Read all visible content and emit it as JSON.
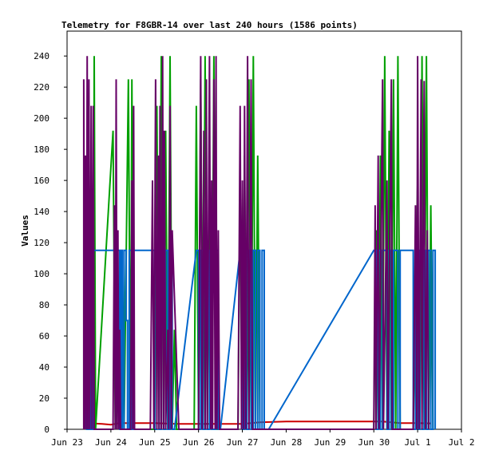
{
  "chart_data": {
    "type": "line",
    "title": "Telemetry for F8GBR-14 over last 240 hours (1586 points)",
    "ylabel": "Values",
    "xlabel": "",
    "x_tick_labels": [
      "Jun 23",
      "Jun 24",
      "Jun 25",
      "Jun 26",
      "Jun 27",
      "Jun 28",
      "Jun 29",
      "Jun 30",
      "Jul 1",
      "Jul 2"
    ],
    "x_tick_values": [
      0,
      1,
      2,
      3,
      4,
      5,
      6,
      7,
      8,
      9
    ],
    "xlim": [
      0,
      9
    ],
    "y_ticks": [
      0,
      20,
      40,
      60,
      80,
      100,
      120,
      140,
      160,
      180,
      200,
      220,
      240
    ],
    "ylim": [
      0,
      256
    ],
    "grid": false,
    "legend": "none",
    "series": [
      {
        "color": "#cc0000",
        "points": [
          [
            0.45,
            4
          ],
          [
            0.8,
            3.5
          ],
          [
            1.0,
            3
          ],
          [
            1.2,
            4
          ],
          [
            1.6,
            4
          ],
          [
            2.0,
            4
          ],
          [
            2.5,
            3.5
          ],
          [
            3.0,
            3.5
          ],
          [
            3.5,
            3.5
          ],
          [
            4.0,
            3.5
          ],
          [
            4.4,
            4.5
          ],
          [
            5.0,
            5
          ],
          [
            6.0,
            5
          ],
          [
            7.0,
            5
          ],
          [
            7.2,
            5
          ],
          [
            7.6,
            4
          ],
          [
            8.0,
            4
          ],
          [
            8.3,
            3.8
          ]
        ]
      },
      {
        "color": "#00a000",
        "points": [
          [
            0.4,
            0
          ],
          [
            0.45,
            168
          ],
          [
            0.5,
            24
          ],
          [
            0.52,
            0
          ],
          [
            0.55,
            112
          ],
          [
            0.6,
            0
          ],
          [
            0.62,
            240
          ],
          [
            0.65,
            0
          ],
          [
            1.05,
            192
          ],
          [
            1.1,
            0
          ],
          [
            1.15,
            40
          ],
          [
            1.2,
            0
          ],
          [
            1.25,
            115
          ],
          [
            1.3,
            0
          ],
          [
            1.4,
            225
          ],
          [
            1.45,
            0
          ],
          [
            1.48,
            225
          ],
          [
            1.52,
            0
          ],
          [
            2.0,
            0
          ],
          [
            2.05,
            208
          ],
          [
            2.1,
            0
          ],
          [
            2.15,
            240
          ],
          [
            2.2,
            0
          ],
          [
            2.25,
            192
          ],
          [
            2.3,
            0
          ],
          [
            2.35,
            240
          ],
          [
            2.4,
            0
          ],
          [
            2.45,
            64
          ],
          [
            2.5,
            0
          ],
          [
            2.9,
            0
          ],
          [
            2.95,
            208
          ],
          [
            3.0,
            0
          ],
          [
            3.05,
            225
          ],
          [
            3.1,
            0
          ],
          [
            3.15,
            240
          ],
          [
            3.2,
            0
          ],
          [
            3.25,
            160
          ],
          [
            3.3,
            0
          ],
          [
            3.35,
            240
          ],
          [
            3.4,
            0
          ],
          [
            3.45,
            0
          ],
          [
            3.9,
            0
          ],
          [
            3.95,
            160
          ],
          [
            4.0,
            0
          ],
          [
            4.05,
            176
          ],
          [
            4.1,
            0
          ],
          [
            4.15,
            225
          ],
          [
            4.2,
            0
          ],
          [
            4.25,
            240
          ],
          [
            4.3,
            0
          ],
          [
            4.35,
            176
          ],
          [
            4.4,
            0
          ],
          [
            7.0,
            0
          ],
          [
            7.05,
            128
          ],
          [
            7.1,
            0
          ],
          [
            7.15,
            176
          ],
          [
            7.2,
            0
          ],
          [
            7.25,
            240
          ],
          [
            7.3,
            0
          ],
          [
            7.35,
            192
          ],
          [
            7.4,
            0
          ],
          [
            7.45,
            225
          ],
          [
            7.5,
            0
          ],
          [
            7.55,
            240
          ],
          [
            7.6,
            0
          ],
          [
            7.9,
            0
          ],
          [
            8.0,
            160
          ],
          [
            8.05,
            0
          ],
          [
            8.1,
            240
          ],
          [
            8.15,
            0
          ],
          [
            8.2,
            240
          ],
          [
            8.25,
            0
          ],
          [
            8.3,
            144
          ],
          [
            8.35,
            0
          ]
        ]
      },
      {
        "color": "#0066cc",
        "points": [
          [
            0.42,
            0
          ],
          [
            0.42,
            115
          ],
          [
            0.45,
            115
          ],
          [
            0.45,
            0
          ],
          [
            0.48,
            0
          ],
          [
            0.48,
            115
          ],
          [
            0.5,
            115
          ],
          [
            0.5,
            0
          ],
          [
            0.53,
            0
          ],
          [
            0.53,
            115
          ],
          [
            0.56,
            115
          ],
          [
            0.56,
            0
          ],
          [
            0.6,
            0
          ],
          [
            0.6,
            115
          ],
          [
            1.2,
            115
          ],
          [
            1.2,
            0
          ],
          [
            1.23,
            0
          ],
          [
            1.23,
            115
          ],
          [
            1.26,
            115
          ],
          [
            1.26,
            0
          ],
          [
            1.3,
            0
          ],
          [
            1.3,
            115
          ],
          [
            1.35,
            115
          ],
          [
            1.35,
            70
          ],
          [
            1.38,
            70
          ],
          [
            1.38,
            0
          ],
          [
            1.42,
            0
          ],
          [
            1.42,
            115
          ],
          [
            1.48,
            115
          ],
          [
            1.48,
            0
          ],
          [
            1.52,
            0
          ],
          [
            1.52,
            115
          ],
          [
            2.0,
            115
          ],
          [
            2.0,
            0
          ],
          [
            2.05,
            0
          ],
          [
            2.05,
            115
          ],
          [
            2.1,
            115
          ],
          [
            2.1,
            0
          ],
          [
            2.15,
            0
          ],
          [
            2.15,
            115
          ],
          [
            2.2,
            115
          ],
          [
            2.2,
            0
          ],
          [
            2.25,
            0
          ],
          [
            2.25,
            115
          ],
          [
            2.3,
            115
          ],
          [
            2.3,
            0
          ],
          [
            2.35,
            0
          ],
          [
            2.35,
            115
          ],
          [
            2.4,
            115
          ],
          [
            2.4,
            0
          ],
          [
            2.45,
            0
          ],
          [
            2.95,
            115
          ],
          [
            3.0,
            115
          ],
          [
            3.0,
            0
          ],
          [
            3.05,
            0
          ],
          [
            3.05,
            115
          ],
          [
            3.1,
            115
          ],
          [
            3.1,
            0
          ],
          [
            3.15,
            0
          ],
          [
            3.15,
            115
          ],
          [
            3.2,
            115
          ],
          [
            3.2,
            0
          ],
          [
            3.25,
            0
          ],
          [
            3.25,
            115
          ],
          [
            3.3,
            115
          ],
          [
            3.3,
            0
          ],
          [
            3.4,
            0
          ],
          [
            3.4,
            115
          ],
          [
            3.45,
            115
          ],
          [
            3.45,
            0
          ],
          [
            3.5,
            0
          ],
          [
            3.95,
            115
          ],
          [
            4.0,
            115
          ],
          [
            4.0,
            0
          ],
          [
            4.05,
            0
          ],
          [
            4.05,
            115
          ],
          [
            4.1,
            115
          ],
          [
            4.1,
            0
          ],
          [
            4.15,
            0
          ],
          [
            4.15,
            115
          ],
          [
            4.2,
            115
          ],
          [
            4.2,
            0
          ],
          [
            4.25,
            0
          ],
          [
            4.25,
            115
          ],
          [
            4.3,
            115
          ],
          [
            4.3,
            0
          ],
          [
            4.35,
            0
          ],
          [
            4.35,
            115
          ],
          [
            4.4,
            115
          ],
          [
            4.4,
            0
          ],
          [
            4.45,
            0
          ],
          [
            4.45,
            115
          ],
          [
            4.5,
            115
          ],
          [
            4.5,
            0
          ],
          [
            4.6,
            0
          ],
          [
            7.0,
            115
          ],
          [
            7.05,
            115
          ],
          [
            7.05,
            0
          ],
          [
            7.1,
            0
          ],
          [
            7.1,
            115
          ],
          [
            7.15,
            115
          ],
          [
            7.15,
            0
          ],
          [
            7.2,
            0
          ],
          [
            7.2,
            115
          ],
          [
            7.3,
            115
          ],
          [
            7.3,
            0
          ],
          [
            7.35,
            0
          ],
          [
            7.35,
            115
          ],
          [
            7.4,
            115
          ],
          [
            7.4,
            0
          ],
          [
            7.45,
            0
          ],
          [
            7.45,
            115
          ],
          [
            7.55,
            115
          ],
          [
            7.55,
            0
          ],
          [
            7.6,
            0
          ],
          [
            7.6,
            115
          ],
          [
            7.9,
            115
          ],
          [
            7.9,
            0
          ],
          [
            7.95,
            0
          ],
          [
            7.95,
            115
          ],
          [
            8.0,
            115
          ],
          [
            8.0,
            0
          ],
          [
            8.05,
            0
          ],
          [
            8.05,
            115
          ],
          [
            8.1,
            115
          ],
          [
            8.1,
            0
          ],
          [
            8.15,
            0
          ],
          [
            8.15,
            115
          ],
          [
            8.2,
            115
          ],
          [
            8.2,
            0
          ],
          [
            8.25,
            0
          ],
          [
            8.25,
            115
          ],
          [
            8.3,
            115
          ],
          [
            8.3,
            0
          ],
          [
            8.35,
            0
          ],
          [
            8.35,
            115
          ],
          [
            8.4,
            115
          ],
          [
            8.4,
            0
          ]
        ]
      },
      {
        "color": "#660066",
        "points": [
          [
            0.38,
            0
          ],
          [
            0.38,
            225
          ],
          [
            0.4,
            0
          ],
          [
            0.42,
            176
          ],
          [
            0.44,
            0
          ],
          [
            0.46,
            240
          ],
          [
            0.48,
            0
          ],
          [
            0.5,
            225
          ],
          [
            0.52,
            0
          ],
          [
            0.55,
            208
          ],
          [
            0.57,
            0
          ],
          [
            0.6,
            208
          ],
          [
            0.62,
            0
          ],
          [
            1.05,
            0
          ],
          [
            1.08,
            144
          ],
          [
            1.1,
            0
          ],
          [
            1.12,
            225
          ],
          [
            1.14,
            0
          ],
          [
            1.16,
            128
          ],
          [
            1.18,
            0
          ],
          [
            1.2,
            64
          ],
          [
            1.22,
            0
          ],
          [
            1.45,
            0
          ],
          [
            1.48,
            160
          ],
          [
            1.5,
            0
          ],
          [
            1.52,
            208
          ],
          [
            1.54,
            0
          ],
          [
            1.9,
            0
          ],
          [
            1.95,
            160
          ],
          [
            1.98,
            0
          ],
          [
            2.02,
            225
          ],
          [
            2.05,
            0
          ],
          [
            2.08,
            176
          ],
          [
            2.1,
            0
          ],
          [
            2.12,
            208
          ],
          [
            2.15,
            0
          ],
          [
            2.18,
            240
          ],
          [
            2.2,
            0
          ],
          [
            2.22,
            192
          ],
          [
            2.25,
            0
          ],
          [
            2.3,
            64
          ],
          [
            2.32,
            0
          ],
          [
            2.35,
            208
          ],
          [
            2.38,
            0
          ],
          [
            2.4,
            128
          ],
          [
            2.55,
            0
          ],
          [
            2.6,
            0
          ],
          [
            3.0,
            0
          ],
          [
            3.05,
            240
          ],
          [
            3.08,
            0
          ],
          [
            3.12,
            192
          ],
          [
            3.15,
            0
          ],
          [
            3.18,
            225
          ],
          [
            3.2,
            0
          ],
          [
            3.25,
            240
          ],
          [
            3.28,
            0
          ],
          [
            3.3,
            160
          ],
          [
            3.32,
            0
          ],
          [
            3.35,
            225
          ],
          [
            3.38,
            0
          ],
          [
            3.4,
            240
          ],
          [
            3.42,
            0
          ],
          [
            3.45,
            128
          ],
          [
            3.48,
            0
          ],
          [
            3.9,
            0
          ],
          [
            3.95,
            208
          ],
          [
            3.98,
            0
          ],
          [
            4.0,
            160
          ],
          [
            4.03,
            0
          ],
          [
            4.05,
            208
          ],
          [
            4.08,
            0
          ],
          [
            4.12,
            240
          ],
          [
            4.15,
            0
          ],
          [
            4.2,
            225
          ],
          [
            4.23,
            0
          ],
          [
            7.0,
            0
          ],
          [
            7.03,
            144
          ],
          [
            7.05,
            0
          ],
          [
            7.1,
            176
          ],
          [
            7.12,
            0
          ],
          [
            7.2,
            225
          ],
          [
            7.22,
            0
          ],
          [
            7.3,
            160
          ],
          [
            7.32,
            0
          ],
          [
            7.4,
            225
          ],
          [
            7.42,
            0
          ],
          [
            7.9,
            0
          ],
          [
            7.95,
            144
          ],
          [
            7.98,
            0
          ],
          [
            8.0,
            240
          ],
          [
            8.03,
            0
          ],
          [
            8.08,
            225
          ],
          [
            8.1,
            0
          ],
          [
            8.15,
            224
          ],
          [
            8.18,
            0
          ],
          [
            8.22,
            128
          ],
          [
            8.25,
            0
          ]
        ]
      }
    ]
  }
}
